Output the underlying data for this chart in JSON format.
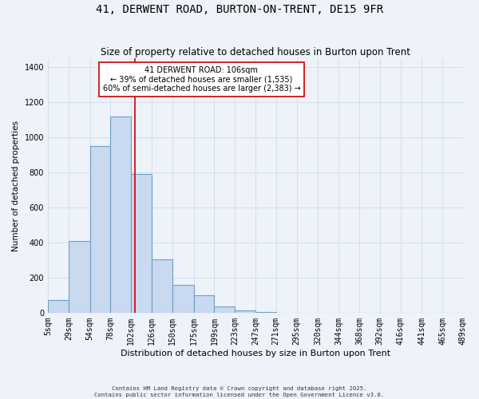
{
  "title": "41, DERWENT ROAD, BURTON-ON-TRENT, DE15 9FR",
  "subtitle": "Size of property relative to detached houses in Burton upon Trent",
  "xlabel": "Distribution of detached houses by size in Burton upon Trent",
  "ylabel": "Number of detached properties",
  "bin_edges": [
    5,
    29,
    54,
    78,
    102,
    126,
    150,
    175,
    199,
    223,
    247,
    271,
    295,
    320,
    344,
    368,
    392,
    416,
    441,
    465,
    489
  ],
  "bin_counts": [
    70,
    410,
    950,
    1120,
    790,
    305,
    160,
    100,
    35,
    15,
    5,
    0,
    0,
    0,
    0,
    0,
    0,
    0,
    0,
    0
  ],
  "bar_facecolor": "#c9d9ef",
  "bar_edgecolor": "#6e9ec8",
  "bar_linewidth": 0.8,
  "grid_color": "#d0dcea",
  "background_color": "#eef2f9",
  "redline_x": 106,
  "redline_color": "#cc0000",
  "annotation_title": "41 DERWENT ROAD: 106sqm",
  "annotation_line1": "← 39% of detached houses are smaller (1,535)",
  "annotation_line2": "60% of semi-detached houses are larger (2,383) →",
  "annotation_box_edgecolor": "#cc0000",
  "ylim": [
    0,
    1450
  ],
  "tick_labels": [
    "5sqm",
    "29sqm",
    "54sqm",
    "78sqm",
    "102sqm",
    "126sqm",
    "150sqm",
    "175sqm",
    "199sqm",
    "223sqm",
    "247sqm",
    "271sqm",
    "295sqm",
    "320sqm",
    "344sqm",
    "368sqm",
    "392sqm",
    "416sqm",
    "441sqm",
    "465sqm",
    "489sqm"
  ],
  "footnote1": "Contains HM Land Registry data © Crown copyright and database right 2025.",
  "footnote2": "Contains public sector information licensed under the Open Government Licence v3.0."
}
